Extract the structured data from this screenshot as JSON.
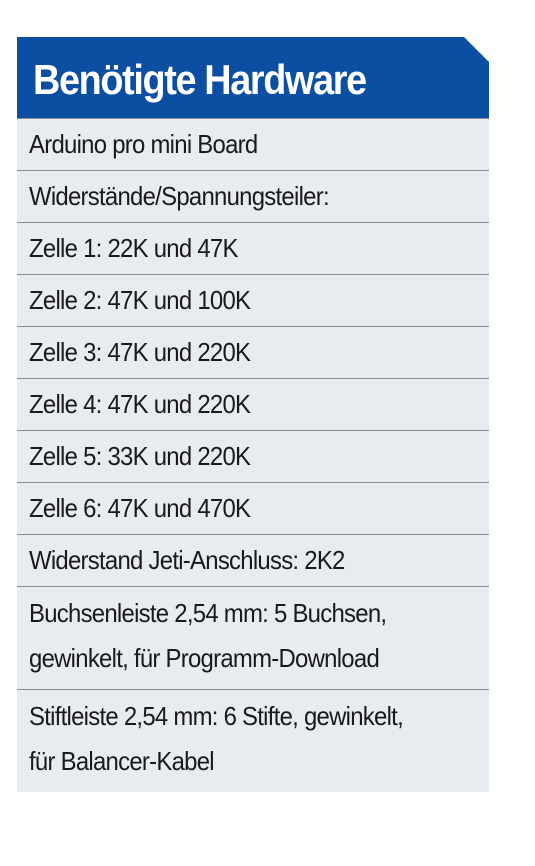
{
  "title": "Benötigte Hardware",
  "colors": {
    "header_background": "#0b4ea2",
    "header_text": "#ffffff",
    "table_background": "#e8ecf1",
    "divider": "#8a8f94"
  },
  "rows": [
    {
      "text": "Arduino pro mini Board"
    },
    {
      "text": "Widerstände/Spannungsteiler:"
    },
    {
      "text": "Zelle 1: 22K und 47K"
    },
    {
      "text": "Zelle 2: 47K und 100K"
    },
    {
      "text": "Zelle 3: 47K und 220K"
    },
    {
      "text": "Zelle 4: 47K und 220K"
    },
    {
      "text": "Zelle 5: 33K und 220K"
    },
    {
      "text": "Zelle 6: 47K und 470K"
    },
    {
      "text": "Widerstand Jeti-Anschluss: 2K2"
    },
    {
      "line1": "Buchsenleiste 2,54 mm: 5 Buchsen,",
      "line2": "gewinkelt, für Programm-Download"
    },
    {
      "line1": "Stiftleiste 2,54 mm: 6 Stifte, gewinkelt,",
      "line2": "für Balancer-Kabel"
    }
  ]
}
